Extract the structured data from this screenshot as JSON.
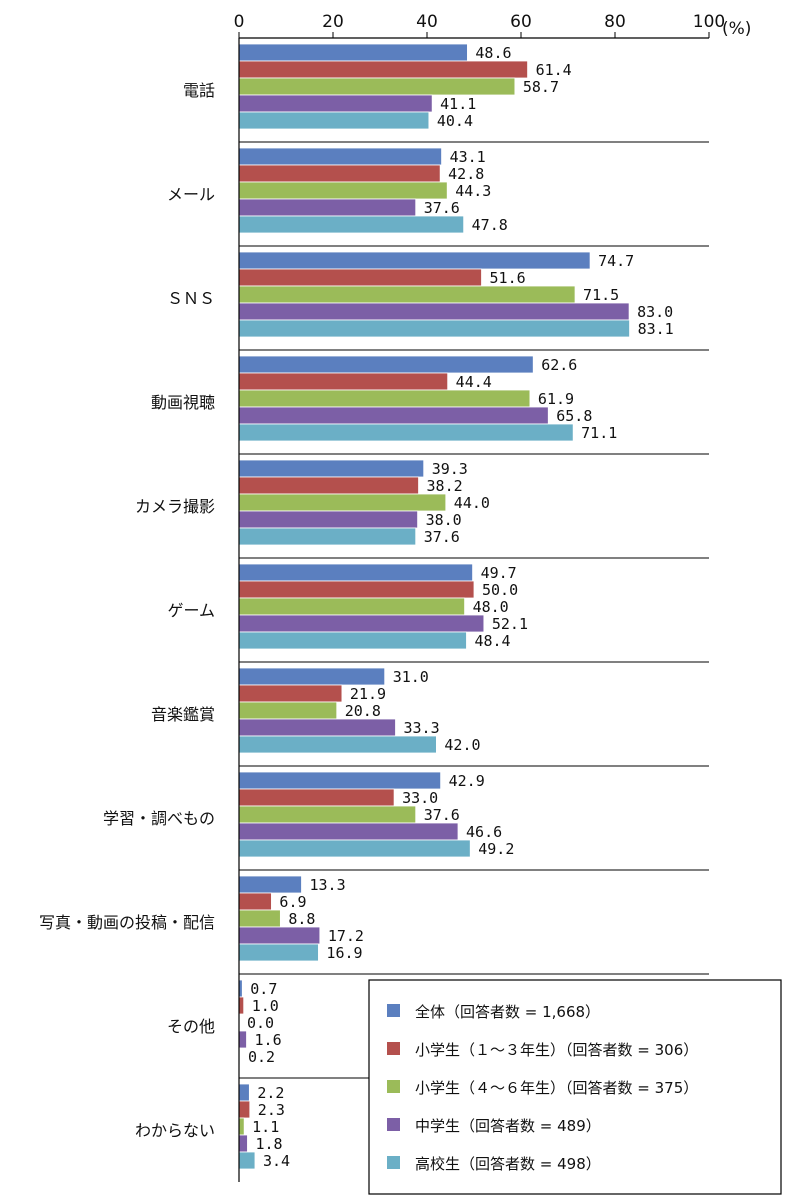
{
  "chart_data": {
    "type": "bar",
    "orientation": "horizontal",
    "unit_label": "(%)",
    "xlim": [
      0,
      100
    ],
    "x_ticks": [
      0,
      20,
      40,
      60,
      80,
      100
    ],
    "categories": [
      "電話",
      "メール",
      "ＳＮＳ",
      "動画視聴",
      "カメラ撮影",
      "ゲーム",
      "音楽鑑賞",
      "学習・調べもの",
      "写真・動画の投稿・配信",
      "その他",
      "わからない"
    ],
    "series": [
      {
        "name": "全体（回答者数 = 1,668）",
        "color": "#5b7fbf",
        "values": [
          48.6,
          43.1,
          74.7,
          62.6,
          39.3,
          49.7,
          31.0,
          42.9,
          13.3,
          0.7,
          2.2
        ]
      },
      {
        "name": "小学生（１～３年生）（回答者数 = 306）",
        "color": "#b4504d",
        "values": [
          61.4,
          42.8,
          51.6,
          44.4,
          38.2,
          50.0,
          21.9,
          33.0,
          6.9,
          1.0,
          2.3
        ]
      },
      {
        "name": "小学生（４～６年生）（回答者数 = 375）",
        "color": "#9bbb59",
        "values": [
          58.7,
          44.3,
          71.5,
          61.9,
          44.0,
          48.0,
          20.8,
          37.6,
          8.8,
          0.0,
          1.1
        ]
      },
      {
        "name": "中学生（回答者数 = 489）",
        "color": "#7c5fa6",
        "values": [
          41.1,
          37.6,
          83.0,
          65.8,
          38.0,
          52.1,
          33.3,
          46.6,
          17.2,
          1.6,
          1.8
        ]
      },
      {
        "name": "高校生（回答者数 = 498）",
        "color": "#6bafc6",
        "values": [
          40.4,
          47.8,
          83.1,
          71.1,
          37.6,
          48.4,
          42.0,
          49.2,
          16.9,
          0.2,
          3.4
        ]
      }
    ],
    "value_labels": [
      [
        "48.6",
        "61.4",
        "58.7",
        "41.1",
        "40.4"
      ],
      [
        "43.1",
        "42.8",
        "44.3",
        "37.6",
        "47.8"
      ],
      [
        "74.7",
        "51.6",
        "71.5",
        "83.0",
        "83.1"
      ],
      [
        "62.6",
        "44.4",
        "61.9",
        "65.8",
        "71.1"
      ],
      [
        "39.3",
        "38.2",
        "44.0",
        "38.0",
        "37.6"
      ],
      [
        "49.7",
        "50.0",
        "48.0",
        "52.1",
        "48.4"
      ],
      [
        "31.0",
        "21.9",
        "20.8",
        "33.3",
        "42.0"
      ],
      [
        "42.9",
        "33.0",
        "37.6",
        "46.6",
        "49.2"
      ],
      [
        "13.3",
        "6.9",
        "8.8",
        "17.2",
        "16.9"
      ],
      [
        "0.7",
        "1.0",
        "0.0",
        "1.6",
        "0.2"
      ],
      [
        "2.2",
        "2.3",
        "1.1",
        "1.8",
        "3.4"
      ]
    ],
    "legend_position": "bottom-right",
    "grid": false
  }
}
